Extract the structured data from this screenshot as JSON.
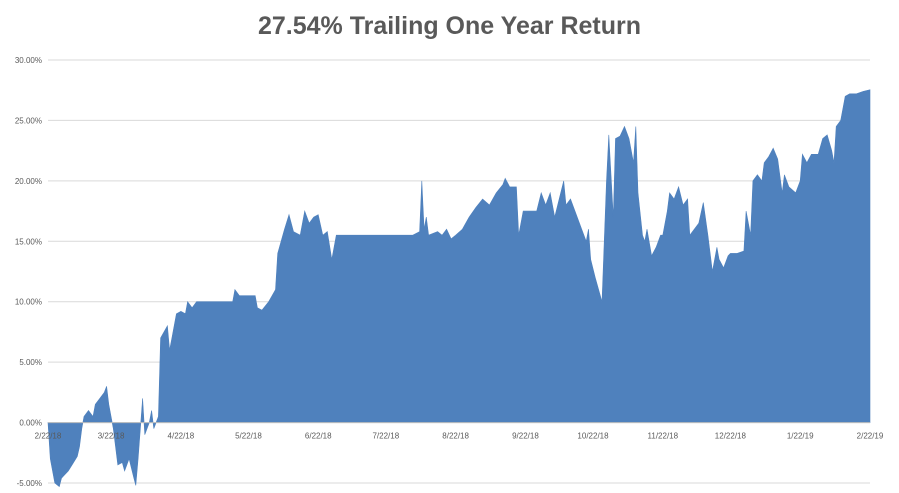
{
  "chart_data": {
    "type": "area",
    "title": "27.54% Trailing One Year Return",
    "xlabel": "",
    "ylabel": "",
    "ylim": [
      -0.05,
      0.3
    ],
    "y_ticks": [
      -0.05,
      0.0,
      0.05,
      0.1,
      0.15,
      0.2,
      0.25,
      0.3
    ],
    "y_tick_labels": [
      "-5.00%",
      "0.00%",
      "5.00%",
      "10.00%",
      "15.00%",
      "20.00%",
      "25.00%",
      "30.00%"
    ],
    "x_range": [
      "2018-02-22",
      "2019-02-22"
    ],
    "x_tick_labels": [
      "2/22/18",
      "3/22/18",
      "4/22/18",
      "5/22/18",
      "6/22/18",
      "7/22/18",
      "8/22/18",
      "9/22/18",
      "10/22/18",
      "11/22/18",
      "12/22/18",
      "1/22/19",
      "2/22/19"
    ],
    "x_tick_dates": [
      "2018-02-22",
      "2018-03-22",
      "2018-04-22",
      "2018-05-22",
      "2018-06-22",
      "2018-07-22",
      "2018-08-22",
      "2018-09-22",
      "2018-10-22",
      "2018-11-22",
      "2018-12-22",
      "2019-01-22",
      "2019-02-22"
    ],
    "grid": true,
    "legend": "none",
    "series": [
      {
        "color": "#4f81bd",
        "points": [
          [
            "2018-02-22",
            0.0
          ],
          [
            "2018-02-23",
            -0.03
          ],
          [
            "2018-02-25",
            -0.05
          ],
          [
            "2018-02-27",
            -0.053
          ],
          [
            "2018-02-28",
            -0.046
          ],
          [
            "2018-03-01",
            -0.044
          ],
          [
            "2018-03-03",
            -0.04
          ],
          [
            "2018-03-05",
            -0.034
          ],
          [
            "2018-03-07",
            -0.028
          ],
          [
            "2018-03-08",
            -0.02
          ],
          [
            "2018-03-09",
            -0.005
          ],
          [
            "2018-03-10",
            0.005
          ],
          [
            "2018-03-12",
            0.01
          ],
          [
            "2018-03-14",
            0.005
          ],
          [
            "2018-03-15",
            0.015
          ],
          [
            "2018-03-17",
            0.02
          ],
          [
            "2018-03-19",
            0.025
          ],
          [
            "2018-03-20",
            0.03
          ],
          [
            "2018-03-21",
            0.015
          ],
          [
            "2018-03-23",
            -0.005
          ],
          [
            "2018-03-25",
            -0.035
          ],
          [
            "2018-03-27",
            -0.033
          ],
          [
            "2018-03-28",
            -0.04
          ],
          [
            "2018-03-30",
            -0.03
          ],
          [
            "2018-04-01",
            -0.045
          ],
          [
            "2018-04-02",
            -0.052
          ],
          [
            "2018-04-03",
            -0.03
          ],
          [
            "2018-04-05",
            0.02
          ],
          [
            "2018-04-06",
            -0.01
          ],
          [
            "2018-04-08",
            0.0
          ],
          [
            "2018-04-09",
            0.01
          ],
          [
            "2018-04-10",
            -0.005
          ],
          [
            "2018-04-12",
            0.005
          ],
          [
            "2018-04-13",
            0.07
          ],
          [
            "2018-04-16",
            0.08
          ],
          [
            "2018-04-17",
            0.06
          ],
          [
            "2018-04-18",
            0.07
          ],
          [
            "2018-04-20",
            0.09
          ],
          [
            "2018-04-22",
            0.092
          ],
          [
            "2018-04-24",
            0.09
          ],
          [
            "2018-04-25",
            0.1
          ],
          [
            "2018-04-27",
            0.095
          ],
          [
            "2018-04-29",
            0.1
          ],
          [
            "2018-05-02",
            0.1
          ],
          [
            "2018-05-06",
            0.1
          ],
          [
            "2018-05-12",
            0.1
          ],
          [
            "2018-05-15",
            0.1
          ],
          [
            "2018-05-16",
            0.11
          ],
          [
            "2018-05-18",
            0.105
          ],
          [
            "2018-05-22",
            0.105
          ],
          [
            "2018-05-25",
            0.105
          ],
          [
            "2018-05-26",
            0.095
          ],
          [
            "2018-05-28",
            0.093
          ],
          [
            "2018-05-31",
            0.1
          ],
          [
            "2018-06-03",
            0.11
          ],
          [
            "2018-06-04",
            0.14
          ],
          [
            "2018-06-07",
            0.16
          ],
          [
            "2018-06-09",
            0.172
          ],
          [
            "2018-06-11",
            0.158
          ],
          [
            "2018-06-14",
            0.155
          ],
          [
            "2018-06-16",
            0.175
          ],
          [
            "2018-06-18",
            0.165
          ],
          [
            "2018-06-20",
            0.17
          ],
          [
            "2018-06-22",
            0.172
          ],
          [
            "2018-06-24",
            0.155
          ],
          [
            "2018-06-26",
            0.158
          ],
          [
            "2018-06-28",
            0.135
          ],
          [
            "2018-06-30",
            0.155
          ],
          [
            "2018-07-03",
            0.155
          ],
          [
            "2018-07-10",
            0.155
          ],
          [
            "2018-07-22",
            0.155
          ],
          [
            "2018-08-03",
            0.155
          ],
          [
            "2018-08-06",
            0.158
          ],
          [
            "2018-08-07",
            0.2
          ],
          [
            "2018-08-08",
            0.16
          ],
          [
            "2018-08-09",
            0.17
          ],
          [
            "2018-08-10",
            0.155
          ],
          [
            "2018-08-14",
            0.158
          ],
          [
            "2018-08-16",
            0.155
          ],
          [
            "2018-08-18",
            0.16
          ],
          [
            "2018-08-20",
            0.152
          ],
          [
            "2018-08-22",
            0.155
          ],
          [
            "2018-08-25",
            0.16
          ],
          [
            "2018-08-28",
            0.17
          ],
          [
            "2018-08-31",
            0.178
          ],
          [
            "2018-09-03",
            0.185
          ],
          [
            "2018-09-06",
            0.18
          ],
          [
            "2018-09-09",
            0.19
          ],
          [
            "2018-09-12",
            0.197
          ],
          [
            "2018-09-13",
            0.202
          ],
          [
            "2018-09-15",
            0.195
          ],
          [
            "2018-09-18",
            0.195
          ],
          [
            "2018-09-19",
            0.155
          ],
          [
            "2018-09-21",
            0.175
          ],
          [
            "2018-09-24",
            0.175
          ],
          [
            "2018-09-27",
            0.175
          ],
          [
            "2018-09-29",
            0.19
          ],
          [
            "2018-10-01",
            0.18
          ],
          [
            "2018-10-03",
            0.19
          ],
          [
            "2018-10-05",
            0.17
          ],
          [
            "2018-10-07",
            0.185
          ],
          [
            "2018-10-09",
            0.2
          ],
          [
            "2018-10-10",
            0.18
          ],
          [
            "2018-10-12",
            0.185
          ],
          [
            "2018-10-14",
            0.175
          ],
          [
            "2018-10-17",
            0.16
          ],
          [
            "2018-10-19",
            0.15
          ],
          [
            "2018-10-20",
            0.16
          ],
          [
            "2018-10-21",
            0.135
          ],
          [
            "2018-10-23",
            0.12
          ],
          [
            "2018-10-26",
            0.1
          ],
          [
            "2018-10-28",
            0.2
          ],
          [
            "2018-10-29",
            0.238
          ],
          [
            "2018-10-31",
            0.17
          ],
          [
            "2018-11-01",
            0.235
          ],
          [
            "2018-11-03",
            0.237
          ],
          [
            "2018-11-05",
            0.245
          ],
          [
            "2018-11-07",
            0.235
          ],
          [
            "2018-11-09",
            0.215
          ],
          [
            "2018-11-10",
            0.245
          ],
          [
            "2018-11-11",
            0.19
          ],
          [
            "2018-11-13",
            0.155
          ],
          [
            "2018-11-14",
            0.15
          ],
          [
            "2018-11-15",
            0.16
          ],
          [
            "2018-11-17",
            0.138
          ],
          [
            "2018-11-19",
            0.145
          ],
          [
            "2018-11-21",
            0.155
          ],
          [
            "2018-11-22",
            0.155
          ],
          [
            "2018-11-24",
            0.175
          ],
          [
            "2018-11-25",
            0.19
          ],
          [
            "2018-11-27",
            0.185
          ],
          [
            "2018-11-29",
            0.195
          ],
          [
            "2018-12-01",
            0.18
          ],
          [
            "2018-12-03",
            0.185
          ],
          [
            "2018-12-04",
            0.155
          ],
          [
            "2018-12-06",
            0.16
          ],
          [
            "2018-12-08",
            0.165
          ],
          [
            "2018-12-10",
            0.182
          ],
          [
            "2018-12-12",
            0.155
          ],
          [
            "2018-12-14",
            0.125
          ],
          [
            "2018-12-16",
            0.145
          ],
          [
            "2018-12-17",
            0.135
          ],
          [
            "2018-12-19",
            0.128
          ],
          [
            "2018-12-21",
            0.138
          ],
          [
            "2018-12-22",
            0.14
          ],
          [
            "2018-12-25",
            0.14
          ],
          [
            "2018-12-28",
            0.142
          ],
          [
            "2018-12-29",
            0.175
          ],
          [
            "2018-12-31",
            0.155
          ],
          [
            "2019-01-01",
            0.2
          ],
          [
            "2019-01-03",
            0.205
          ],
          [
            "2019-01-05",
            0.2
          ],
          [
            "2019-01-06",
            0.215
          ],
          [
            "2019-01-08",
            0.22
          ],
          [
            "2019-01-10",
            0.227
          ],
          [
            "2019-01-12",
            0.218
          ],
          [
            "2019-01-14",
            0.19
          ],
          [
            "2019-01-15",
            0.205
          ],
          [
            "2019-01-17",
            0.195
          ],
          [
            "2019-01-20",
            0.19
          ],
          [
            "2019-01-22",
            0.2
          ],
          [
            "2019-01-23",
            0.222
          ],
          [
            "2019-01-25",
            0.215
          ],
          [
            "2019-01-27",
            0.222
          ],
          [
            "2019-01-30",
            0.222
          ],
          [
            "2019-02-01",
            0.235
          ],
          [
            "2019-02-03",
            0.238
          ],
          [
            "2019-02-05",
            0.225
          ],
          [
            "2019-02-06",
            0.215
          ],
          [
            "2019-02-07",
            0.245
          ],
          [
            "2019-02-09",
            0.25
          ],
          [
            "2019-02-11",
            0.27
          ],
          [
            "2019-02-13",
            0.272
          ],
          [
            "2019-02-16",
            0.272
          ],
          [
            "2019-02-19",
            0.274
          ],
          [
            "2019-02-22",
            0.2754
          ]
        ]
      }
    ]
  }
}
